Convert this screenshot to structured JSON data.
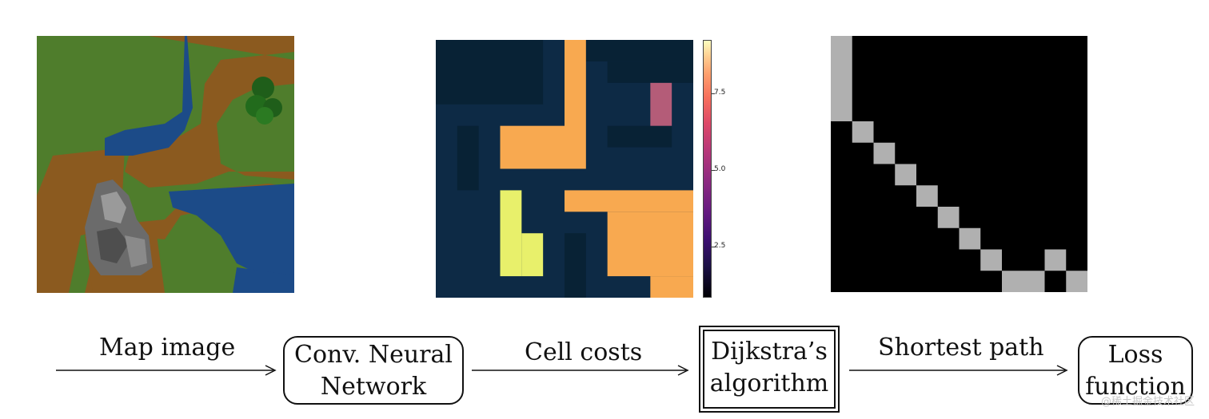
{
  "labels": {
    "map_image": "Map image",
    "cell_costs": "Cell costs",
    "shortest_path": "Shortest path"
  },
  "boxes": {
    "cnn_line1": "Conv. Neural",
    "cnn_line2": "Network",
    "dijkstra_line1": "Dijkstra’s",
    "dijkstra_line2": "algorithm",
    "loss_line1": "Loss",
    "loss_line2": "function"
  },
  "colorbar": {
    "ticks": [
      "7.5",
      "5.0",
      "2.5"
    ]
  },
  "watermark": "@稀土掘金技术社区",
  "colors": {
    "grass": "#4a7a2a",
    "dirt": "#8a5a1e",
    "water": "#1d4e8c",
    "low_cost": "#0c2a44",
    "mid_cost": "#f7a94f",
    "high_cost": "#e8f06b",
    "tree_cost": "#b45c78",
    "path": "#b0b0b0",
    "path_bg": "#000000"
  }
}
